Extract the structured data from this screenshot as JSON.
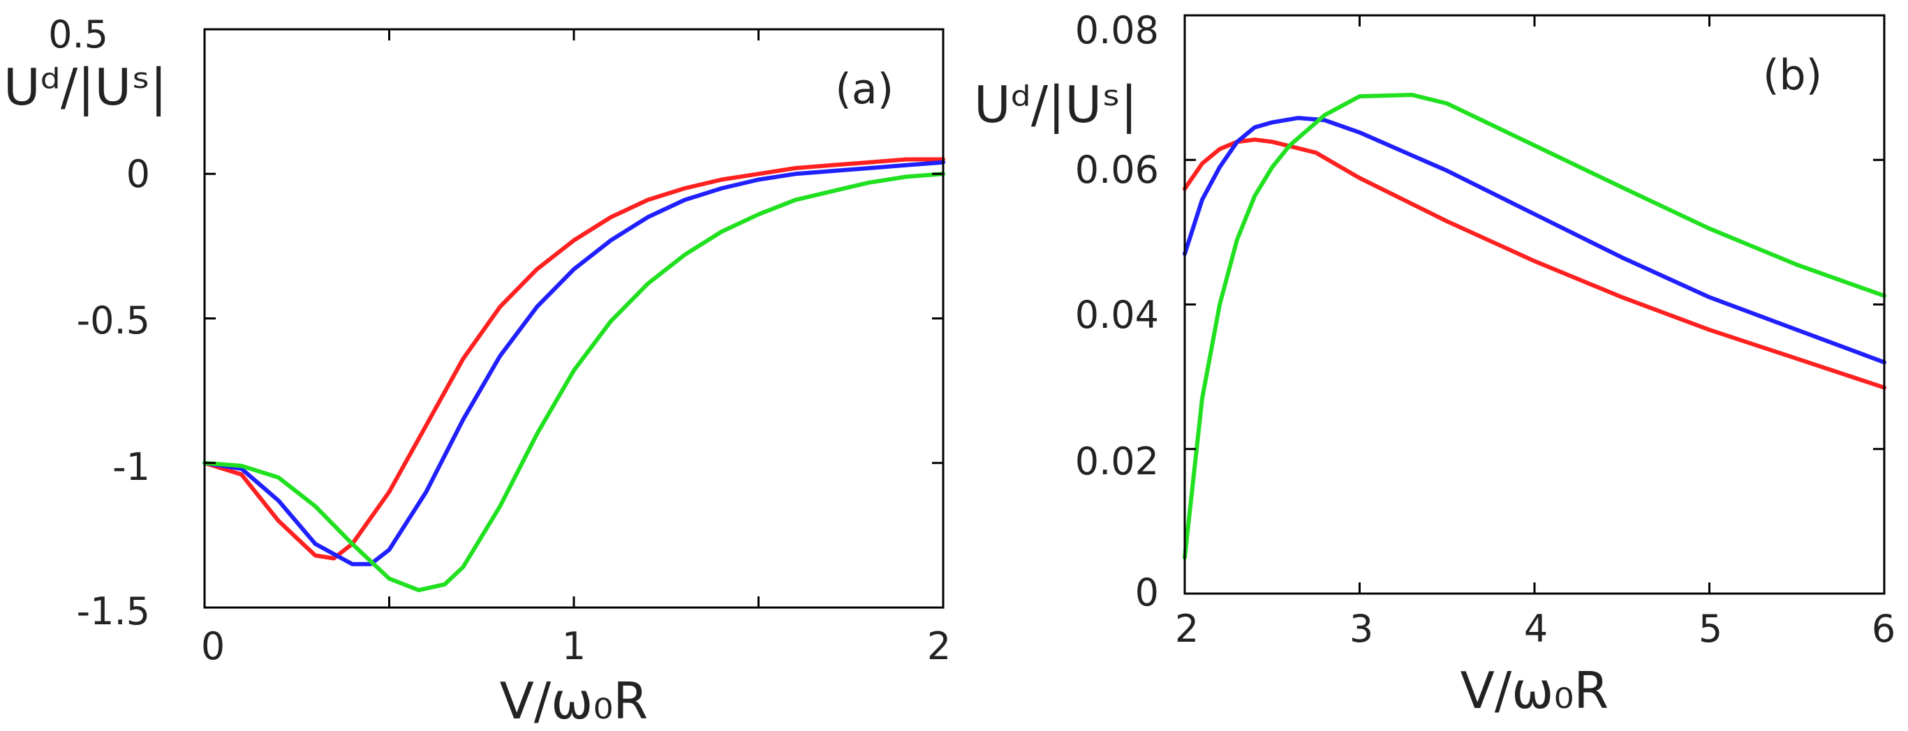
{
  "chart_data": [
    {
      "panel": "(a)",
      "type": "line",
      "xlabel": "V/ω₀R",
      "ylabel": "Uᵈ/|Uˢ|",
      "xlim": [
        0,
        2
      ],
      "ylim": [
        -1.5,
        0.5
      ],
      "xticks": [
        0,
        0.5,
        1,
        1.5,
        2
      ],
      "xtick_labels": [
        "0",
        "",
        "1",
        "",
        "2"
      ],
      "yticks": [
        -1.5,
        -1,
        -0.5,
        0,
        0.5
      ],
      "ytick_labels": [
        "-1.5",
        "-1",
        "-0.5",
        "0",
        "0.5"
      ],
      "series": [
        {
          "name": "red",
          "color": "#ff2020",
          "x": [
            0,
            0.1,
            0.2,
            0.3,
            0.35,
            0.4,
            0.5,
            0.6,
            0.7,
            0.8,
            0.9,
            1.0,
            1.1,
            1.2,
            1.3,
            1.4,
            1.5,
            1.6,
            1.7,
            1.8,
            1.9,
            2.0
          ],
          "y": [
            -1.0,
            -1.04,
            -1.2,
            -1.32,
            -1.33,
            -1.28,
            -1.1,
            -0.87,
            -0.64,
            -0.46,
            -0.33,
            -0.23,
            -0.15,
            -0.09,
            -0.05,
            -0.02,
            0.0,
            0.02,
            0.03,
            0.04,
            0.05,
            0.05
          ]
        },
        {
          "name": "blue",
          "color": "#2020ff",
          "x": [
            0,
            0.1,
            0.2,
            0.3,
            0.4,
            0.45,
            0.5,
            0.6,
            0.7,
            0.8,
            0.9,
            1.0,
            1.1,
            1.2,
            1.3,
            1.4,
            1.5,
            1.6,
            1.7,
            1.8,
            1.9,
            2.0
          ],
          "y": [
            -1.0,
            -1.02,
            -1.13,
            -1.28,
            -1.35,
            -1.35,
            -1.3,
            -1.1,
            -0.85,
            -0.63,
            -0.46,
            -0.33,
            -0.23,
            -0.15,
            -0.09,
            -0.05,
            -0.02,
            0.0,
            0.01,
            0.02,
            0.03,
            0.04
          ]
        },
        {
          "name": "green",
          "color": "#20e020",
          "x": [
            0,
            0.1,
            0.2,
            0.3,
            0.4,
            0.5,
            0.58,
            0.65,
            0.7,
            0.8,
            0.9,
            1.0,
            1.1,
            1.2,
            1.3,
            1.4,
            1.5,
            1.6,
            1.7,
            1.8,
            1.9,
            2.0
          ],
          "y": [
            -1.0,
            -1.01,
            -1.05,
            -1.15,
            -1.28,
            -1.4,
            -1.44,
            -1.42,
            -1.36,
            -1.15,
            -0.9,
            -0.68,
            -0.51,
            -0.38,
            -0.28,
            -0.2,
            -0.14,
            -0.09,
            -0.06,
            -0.03,
            -0.01,
            0.0
          ]
        }
      ]
    },
    {
      "panel": "(b)",
      "type": "line",
      "xlabel": "V/ω₀R",
      "ylabel": "Uᵈ/|Uˢ|",
      "xlim": [
        2,
        6
      ],
      "ylim": [
        0,
        0.08
      ],
      "xticks": [
        2,
        3,
        4,
        5,
        6
      ],
      "xtick_labels": [
        "2",
        "3",
        "4",
        "5",
        "6"
      ],
      "yticks": [
        0,
        0.02,
        0.04,
        0.06,
        0.08
      ],
      "ytick_labels": [
        "0",
        "0.02",
        "0.04",
        "0.06",
        "0.08"
      ],
      "series": [
        {
          "name": "red",
          "color": "#ff2020",
          "x": [
            2.0,
            2.1,
            2.2,
            2.3,
            2.4,
            2.5,
            2.75,
            3.0,
            3.5,
            4.0,
            4.5,
            5.0,
            5.5,
            6.0
          ],
          "y": [
            0.056,
            0.0595,
            0.0615,
            0.0625,
            0.0628,
            0.0625,
            0.061,
            0.0575,
            0.0515,
            0.046,
            0.041,
            0.0365,
            0.0325,
            0.0285
          ]
        },
        {
          "name": "blue",
          "color": "#2020ff",
          "x": [
            2.0,
            2.1,
            2.2,
            2.3,
            2.4,
            2.5,
            2.65,
            2.8,
            3.0,
            3.5,
            4.0,
            4.5,
            5.0,
            5.5,
            6.0
          ],
          "y": [
            0.047,
            0.0545,
            0.059,
            0.0625,
            0.0645,
            0.0652,
            0.0658,
            0.0655,
            0.0638,
            0.0585,
            0.0525,
            0.0465,
            0.041,
            0.0365,
            0.032
          ]
        },
        {
          "name": "green",
          "color": "#20e020",
          "x": [
            2.0,
            2.1,
            2.2,
            2.3,
            2.4,
            2.5,
            2.6,
            2.8,
            3.0,
            3.3,
            3.5,
            4.0,
            4.5,
            5.0,
            5.5,
            6.0
          ],
          "y": [
            0.005,
            0.027,
            0.04,
            0.049,
            0.055,
            0.059,
            0.062,
            0.0662,
            0.0688,
            0.069,
            0.0678,
            0.062,
            0.0562,
            0.0505,
            0.0455,
            0.0412
          ]
        }
      ]
    }
  ]
}
